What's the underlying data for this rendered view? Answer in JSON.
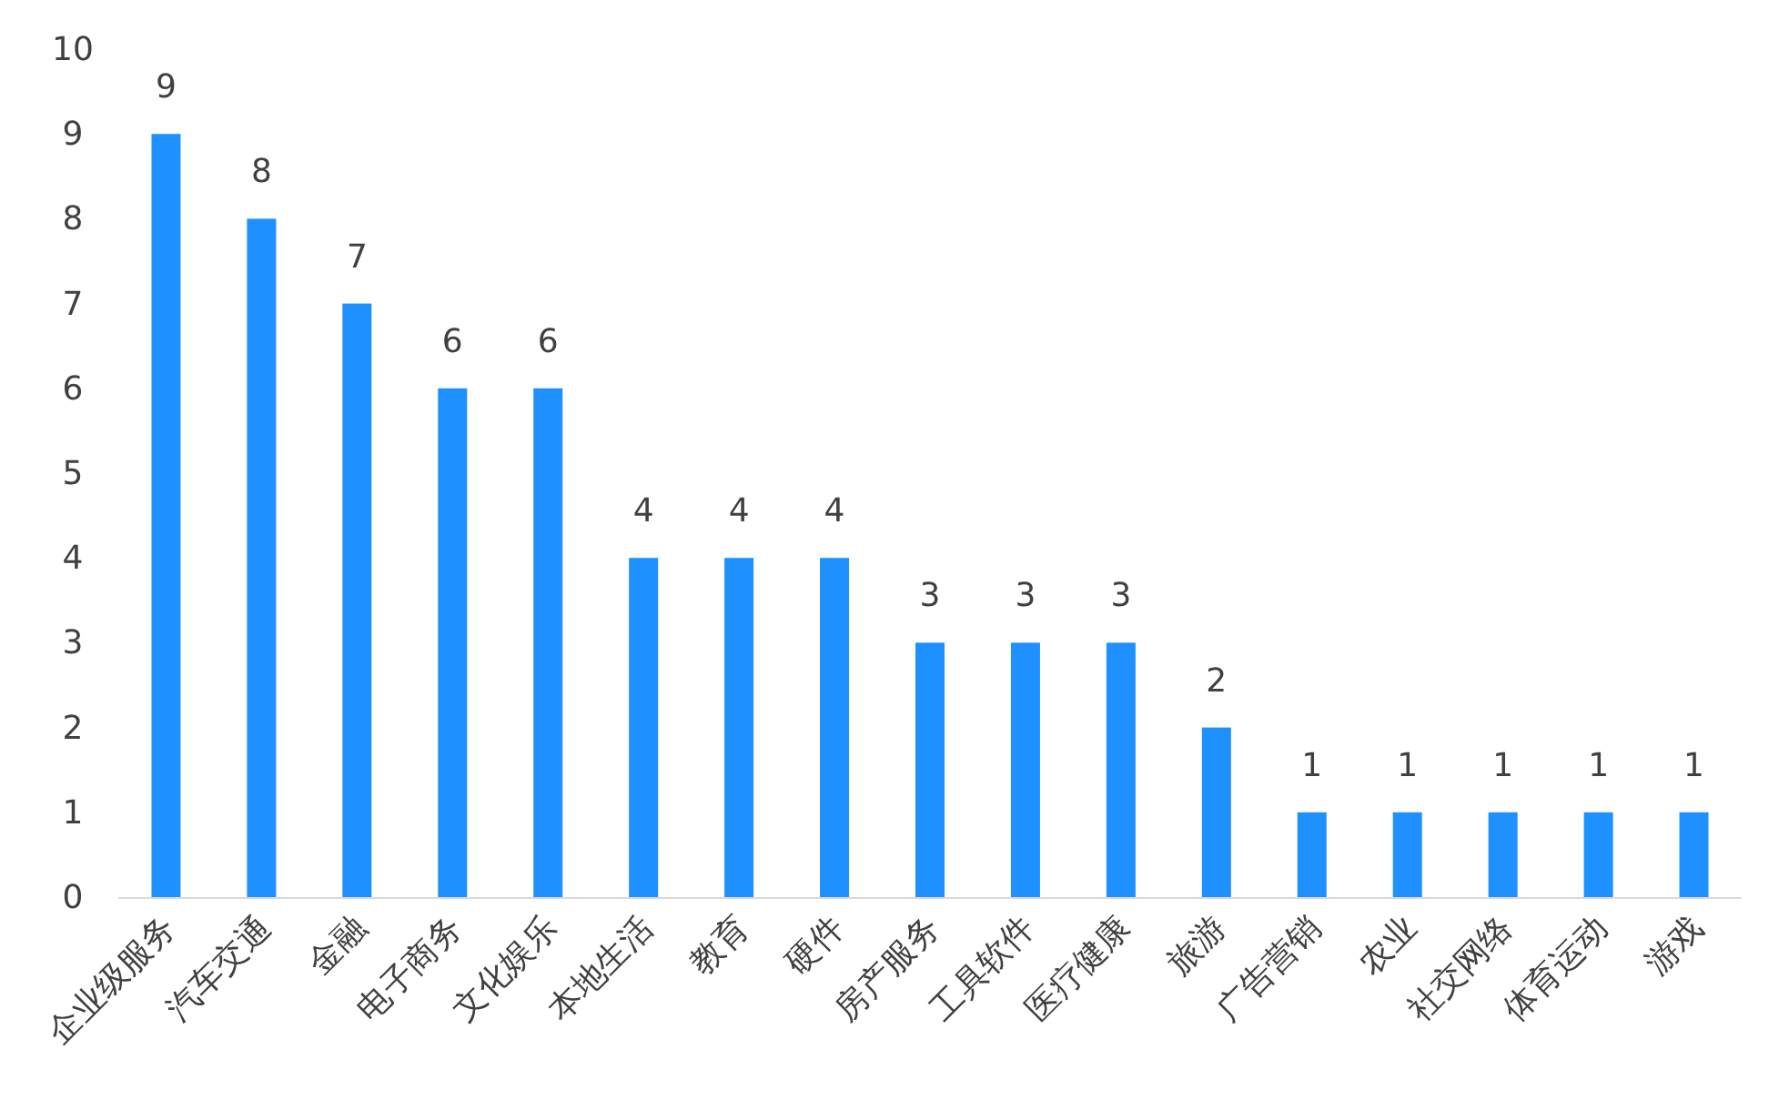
{
  "chart_data": {
    "type": "bar",
    "categories": [
      "企业级服务",
      "汽车交通",
      "金融",
      "电子商务",
      "文化娱乐",
      "本地生活",
      "教育",
      "硬件",
      "房产服务",
      "工具软件",
      "医疗健康",
      "旅游",
      "广告营销",
      "农业",
      "社交网络",
      "体育运动",
      "游戏"
    ],
    "values": [
      9,
      8,
      7,
      6,
      6,
      4,
      4,
      4,
      3,
      3,
      3,
      2,
      1,
      1,
      1,
      1,
      1
    ],
    "color": "#1e90ff",
    "ylim": [
      0,
      10
    ],
    "yticks": [
      0,
      1,
      2,
      3,
      4,
      5,
      6,
      7,
      8,
      9,
      10
    ],
    "data_labels": true
  }
}
